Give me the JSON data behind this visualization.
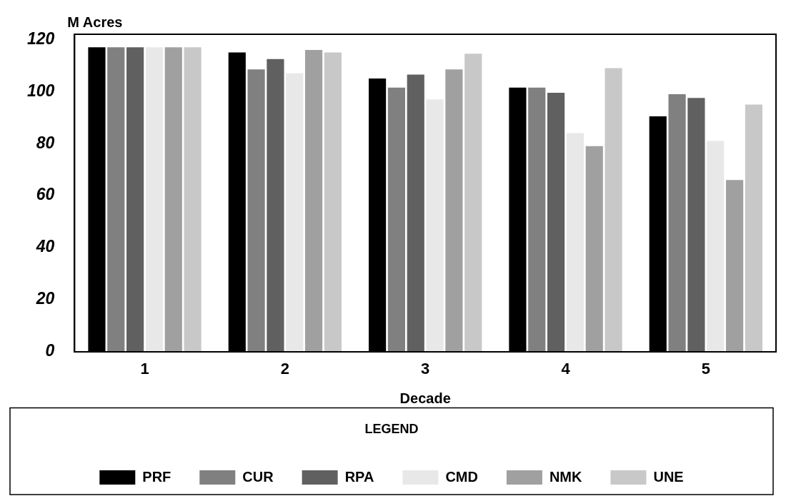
{
  "chart_data": {
    "type": "bar",
    "xlabel": "Decade",
    "ylabel": "M Acres",
    "legend_title": "LEGEND",
    "categories": [
      "1",
      "2",
      "3",
      "4",
      "5"
    ],
    "series": [
      {
        "name": "PRF",
        "color": "#000000",
        "values": [
          117,
          115,
          105,
          101.5,
          90.5
        ]
      },
      {
        "name": "CUR",
        "color": "#808080",
        "values": [
          117,
          108.5,
          101.5,
          101.5,
          99
        ]
      },
      {
        "name": "RPA",
        "color": "#606060",
        "values": [
          117,
          112.5,
          106.5,
          99.5,
          97.5
        ]
      },
      {
        "name": "CMD",
        "color": "#e8e8e8",
        "values": [
          117,
          107,
          97,
          84,
          81
        ]
      },
      {
        "name": "NMK",
        "color": "#a0a0a0",
        "values": [
          117,
          116,
          108.5,
          79,
          66
        ]
      },
      {
        "name": "UNE",
        "color": "#c8c8c8",
        "values": [
          117,
          115,
          114.5,
          109,
          95
        ]
      }
    ],
    "ylim": [
      0,
      122
    ],
    "yticks": [
      0,
      20,
      40,
      60,
      80,
      100,
      120
    ],
    "grid": false,
    "legend": "bottom"
  }
}
